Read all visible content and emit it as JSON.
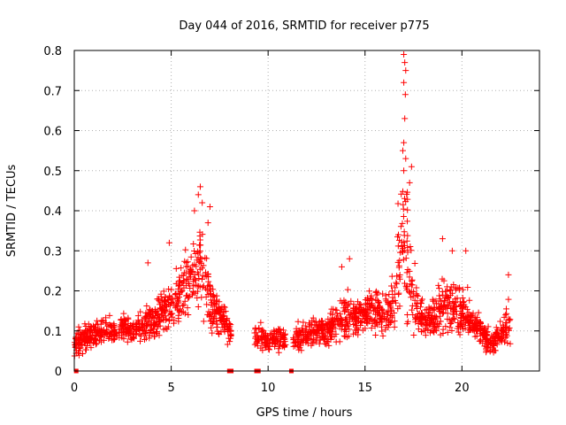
{
  "chart_data": {
    "type": "scatter",
    "title": "Day 044 of 2016, SRMTID for receiver p775",
    "xlabel": "GPS time / hours",
    "ylabel": "SRMTID / TECUs",
    "xlim": [
      0,
      24
    ],
    "ylim": [
      0,
      0.8
    ],
    "x_ticks": [
      0,
      5,
      10,
      15,
      20
    ],
    "x_tick_labels": [
      "0",
      "5",
      "10",
      "15",
      "20"
    ],
    "y_ticks": [
      0,
      0.1,
      0.2,
      0.3,
      0.4,
      0.5,
      0.6,
      0.7,
      0.8
    ],
    "y_tick_labels": [
      "0",
      "0.1",
      "0.2",
      "0.3",
      "0.4",
      "0.5",
      "0.6",
      "0.7",
      "0.8"
    ],
    "grid": true,
    "marker": "+",
    "color": "#ff0000",
    "series": [
      {
        "name": "SRMTID",
        "profile": [
          [
            0.0,
            0.07,
            0.03
          ],
          [
            0.5,
            0.08,
            0.03
          ],
          [
            1.0,
            0.09,
            0.03
          ],
          [
            1.5,
            0.1,
            0.03
          ],
          [
            2.0,
            0.1,
            0.03
          ],
          [
            2.5,
            0.11,
            0.03
          ],
          [
            3.0,
            0.1,
            0.03
          ],
          [
            3.5,
            0.11,
            0.035
          ],
          [
            4.0,
            0.12,
            0.04
          ],
          [
            4.5,
            0.14,
            0.05
          ],
          [
            5.0,
            0.16,
            0.05
          ],
          [
            5.5,
            0.2,
            0.07
          ],
          [
            6.0,
            0.24,
            0.08
          ],
          [
            6.4,
            0.26,
            0.1
          ],
          [
            6.8,
            0.22,
            0.08
          ],
          [
            7.2,
            0.15,
            0.05
          ],
          [
            7.6,
            0.13,
            0.04
          ],
          [
            8.0,
            0.1,
            0.03
          ],
          [
            9.3,
            0.09,
            0.03
          ],
          [
            9.8,
            0.08,
            0.03
          ],
          [
            10.3,
            0.08,
            0.03
          ],
          [
            10.9,
            0.08,
            0.03
          ],
          [
            11.3,
            0.08,
            0.03
          ],
          [
            12.0,
            0.09,
            0.03
          ],
          [
            12.5,
            0.1,
            0.03
          ],
          [
            13.0,
            0.09,
            0.03
          ],
          [
            13.5,
            0.12,
            0.05
          ],
          [
            14.0,
            0.14,
            0.05
          ],
          [
            14.5,
            0.13,
            0.05
          ],
          [
            15.0,
            0.15,
            0.05
          ],
          [
            15.5,
            0.15,
            0.05
          ],
          [
            16.0,
            0.14,
            0.05
          ],
          [
            16.5,
            0.16,
            0.06
          ],
          [
            16.9,
            0.35,
            0.15
          ],
          [
            17.2,
            0.28,
            0.14
          ],
          [
            17.6,
            0.18,
            0.06
          ],
          [
            18.0,
            0.12,
            0.04
          ],
          [
            18.5,
            0.13,
            0.04
          ],
          [
            19.0,
            0.17,
            0.07
          ],
          [
            19.5,
            0.15,
            0.06
          ],
          [
            20.0,
            0.16,
            0.06
          ],
          [
            20.5,
            0.12,
            0.04
          ],
          [
            21.0,
            0.1,
            0.03
          ],
          [
            21.5,
            0.07,
            0.03
          ],
          [
            22.0,
            0.09,
            0.03
          ],
          [
            22.5,
            0.13,
            0.05
          ]
        ],
        "gaps": [
          [
            8.1,
            9.3
          ],
          [
            10.9,
            11.3
          ]
        ],
        "gap_markers": [
          0.1,
          8.0,
          8.1,
          9.4,
          9.5,
          11.2
        ],
        "outliers": [
          [
            17.0,
            0.79
          ],
          [
            17.05,
            0.77
          ],
          [
            17.1,
            0.75
          ],
          [
            17.0,
            0.72
          ],
          [
            17.08,
            0.69
          ],
          [
            17.05,
            0.63
          ],
          [
            17.0,
            0.57
          ],
          [
            16.95,
            0.55
          ],
          [
            17.1,
            0.53
          ],
          [
            17.0,
            0.5
          ],
          [
            17.4,
            0.51
          ],
          [
            17.3,
            0.47
          ],
          [
            6.5,
            0.46
          ],
          [
            6.4,
            0.44
          ],
          [
            6.6,
            0.42
          ],
          [
            6.2,
            0.4
          ],
          [
            7.0,
            0.41
          ],
          [
            6.9,
            0.37
          ],
          [
            4.9,
            0.32
          ],
          [
            3.8,
            0.27
          ],
          [
            19.0,
            0.33
          ],
          [
            19.5,
            0.3
          ],
          [
            20.2,
            0.3
          ],
          [
            14.2,
            0.28
          ],
          [
            13.8,
            0.26
          ],
          [
            22.4,
            0.24
          ]
        ],
        "n_points": 2000
      }
    ]
  }
}
